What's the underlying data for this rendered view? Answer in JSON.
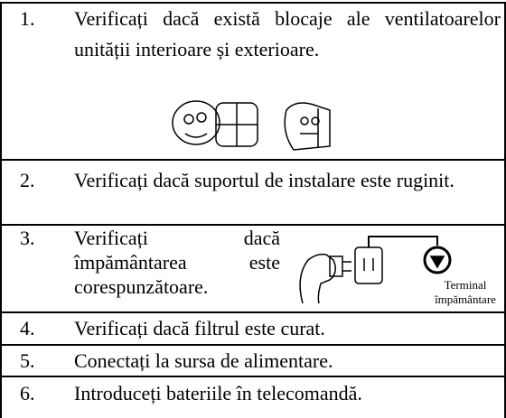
{
  "table": {
    "rows": [
      {
        "number": "1.",
        "text": "Verificați dacă există blocaje ale ventilatoarelor unității interioare și exterioare."
      },
      {
        "number": "2.",
        "text": "Verificați dacă suportul de instalare este ruginit."
      },
      {
        "number": "3.",
        "text": "Verificați dacă împământarea este corespunzătoare."
      },
      {
        "number": "4.",
        "text": "Verificați dacă filtrul este curat."
      },
      {
        "number": "5.",
        "text": "Conectați la sursa de alimentare."
      },
      {
        "number": "6.",
        "text": "Introduceți bateriile în telecomandă."
      }
    ]
  },
  "figure": {
    "ground_label": [
      "Terminal",
      "împământare"
    ]
  }
}
